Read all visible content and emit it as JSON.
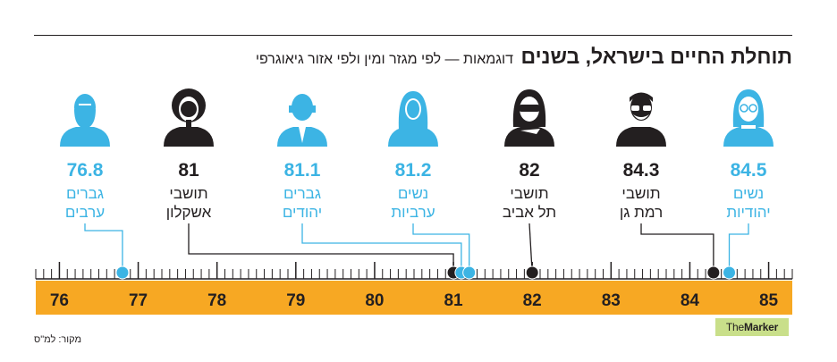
{
  "header": {
    "title": "תוחלת החיים בישראל, בשנים",
    "subtitle": "דוגמאות — לפי מגזר ומין ולפי אזור גיאוגרפי"
  },
  "footer": {
    "source": "מקור: למ\"ס",
    "brand_prefix": "The",
    "brand_name": "Marker"
  },
  "colors": {
    "cyan": "#3cb4e4",
    "dark": "#231f20",
    "axis_band": "#f7a823",
    "brand_bg": "#c9df8a"
  },
  "chart_data": {
    "type": "scatter",
    "title": "תוחלת החיים בישראל, בשנים",
    "subtitle": "דוגמאות — לפי מגזר ומין ולפי אזור גיאוגרפי",
    "xlim": [
      75.7,
      85.3
    ],
    "x_ticks": [
      76,
      77,
      78,
      79,
      80,
      81,
      82,
      83,
      84,
      85
    ],
    "points": [
      {
        "value": 76.8,
        "label_line1": "גברים",
        "label_line2": "ערבים",
        "value_label": "76.8",
        "color": "cyan",
        "icon": "arab-man-bearded-icon"
      },
      {
        "value": 81,
        "label_line1": "תושבי",
        "label_line2": "אשקלון",
        "value_label": "81",
        "color": "dark",
        "icon": "curly-hair-woman-icon"
      },
      {
        "value": 81.1,
        "label_line1": "גברים",
        "label_line2": "יהודים",
        "value_label": "81.1",
        "color": "cyan",
        "icon": "jewish-man-suit-icon"
      },
      {
        "value": 81.2,
        "label_line1": "נשים",
        "label_line2": "ערביות",
        "value_label": "81.2",
        "color": "cyan",
        "icon": "arab-woman-icon"
      },
      {
        "value": 82,
        "label_line1": "תושבי",
        "label_line2": "תל אביב",
        "value_label": "82",
        "color": "dark",
        "icon": "sunglasses-woman-icon"
      },
      {
        "value": 84.3,
        "label_line1": "תושבי",
        "label_line2": "רמת גן",
        "value_label": "84.3",
        "color": "dark",
        "icon": "glasses-man-icon"
      },
      {
        "value": 84.5,
        "label_line1": "נשים",
        "label_line2": "יהודיות",
        "value_label": "84.5",
        "color": "cyan",
        "icon": "jewish-woman-glasses-icon"
      }
    ]
  }
}
